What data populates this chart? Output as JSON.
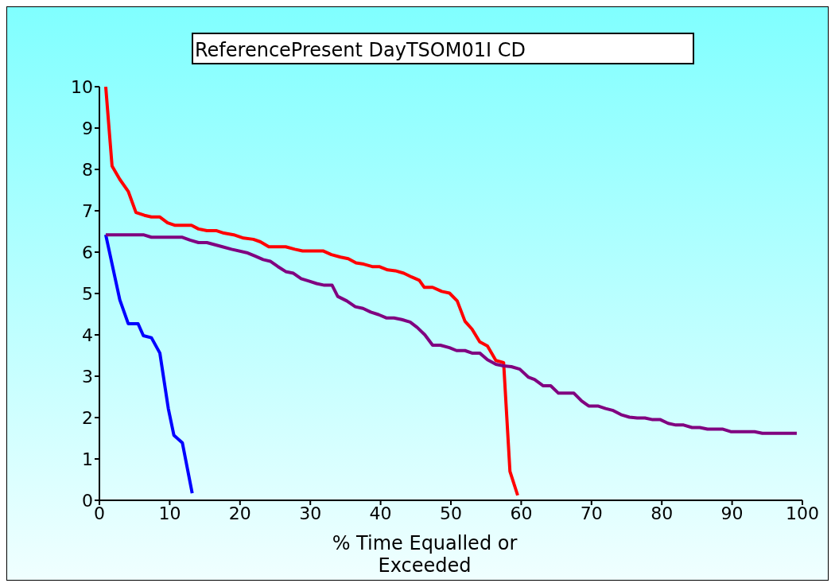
{
  "chart_data": {
    "type": "line",
    "title": "ReferencePresent DayTSOM01I CD",
    "xlabel": "% Time Equalled or Exceeded",
    "xlim": [
      0,
      100
    ],
    "xticks": [
      0,
      10,
      20,
      30,
      40,
      50,
      60,
      70,
      80,
      90,
      100
    ],
    "ylim": [
      0,
      10
    ],
    "yticks": [
      0,
      1,
      2,
      3,
      4,
      5,
      6,
      7,
      8,
      9,
      10
    ],
    "marker": "none",
    "line_style": "solid",
    "series": [
      {
        "color": "#0000ff",
        "x": [
          0.9,
          2.9,
          4.1,
          5.5,
          6.25,
          7.4,
          8.6,
          9.8,
          10.6,
          11.8,
          13.2
        ],
        "values": [
          6.42,
          4.85,
          4.27,
          4.27,
          3.98,
          3.93,
          3.56,
          2.22,
          1.57,
          1.39,
          0.17
        ]
      },
      {
        "color": "#ff0000",
        "x": [
          0.9,
          1.8,
          2.9,
          4.1,
          5.2,
          6.4,
          7.4,
          8.6,
          9.7,
          10.7,
          13.1,
          14.1,
          15.3,
          16.6,
          17.7,
          19.1,
          20.5,
          21.9,
          22.9,
          24.1,
          26.5,
          27.8,
          28.9,
          31.8,
          33.0,
          34.3,
          35.4,
          36.5,
          37.6,
          38.8,
          39.8,
          41.0,
          42.1,
          43.3,
          44.4,
          45.5,
          46.2,
          47.4,
          48.7,
          49.8,
          50.9,
          52.0,
          53.0,
          54.1,
          55.2,
          56.4,
          57.5,
          58.4,
          59.5
        ],
        "values": [
          10,
          8.08,
          7.76,
          7.47,
          6.96,
          6.89,
          6.85,
          6.85,
          6.71,
          6.65,
          6.65,
          6.56,
          6.52,
          6.52,
          6.46,
          6.42,
          6.34,
          6.31,
          6.25,
          6.13,
          6.13,
          6.07,
          6.03,
          6.03,
          5.94,
          5.88,
          5.84,
          5.74,
          5.71,
          5.65,
          5.65,
          5.57,
          5.55,
          5.49,
          5.4,
          5.32,
          5.15,
          5.15,
          5.05,
          5.01,
          4.82,
          4.33,
          4.14,
          3.83,
          3.73,
          3.38,
          3.33,
          0.7,
          0.12
        ]
      },
      {
        "color": "#800080",
        "x": [
          0.9,
          6.25,
          7.4,
          11.8,
          12.9,
          14.1,
          15.3,
          17.5,
          18.8,
          21.1,
          22.2,
          23.3,
          24.3,
          25.4,
          26.5,
          27.6,
          28.7,
          29.8,
          30.9,
          32.0,
          33.1,
          33.9,
          35.2,
          36.4,
          37.5,
          38.6,
          39.7,
          40.8,
          41.9,
          43.0,
          44.2,
          45.2,
          46.3,
          47.4,
          48.5,
          49.8,
          50.8,
          52.0,
          53.0,
          54.1,
          55.2,
          56.4,
          57.5,
          58.6,
          59.8,
          61.0,
          61.9,
          63.1,
          64.2,
          65.3,
          67.5,
          68.6,
          69.6,
          70.9,
          72.0,
          73.1,
          74.2,
          75.4,
          76.5,
          77.6,
          78.7,
          79.8,
          80.9,
          82.0,
          83.1,
          84.3,
          85.4,
          86.5,
          88.7,
          89.8,
          93.2,
          94.3,
          99.2
        ],
        "values": [
          6.42,
          6.42,
          6.36,
          6.36,
          6.29,
          6.23,
          6.23,
          6.13,
          6.07,
          5.98,
          5.9,
          5.82,
          5.78,
          5.65,
          5.53,
          5.49,
          5.36,
          5.3,
          5.24,
          5.2,
          5.2,
          4.93,
          4.82,
          4.68,
          4.64,
          4.55,
          4.49,
          4.41,
          4.41,
          4.37,
          4.31,
          4.18,
          4.0,
          3.75,
          3.75,
          3.69,
          3.62,
          3.62,
          3.56,
          3.56,
          3.4,
          3.29,
          3.25,
          3.23,
          3.17,
          2.98,
          2.92,
          2.77,
          2.77,
          2.59,
          2.59,
          2.4,
          2.28,
          2.28,
          2.22,
          2.17,
          2.07,
          2.01,
          1.99,
          1.99,
          1.95,
          1.95,
          1.86,
          1.82,
          1.82,
          1.76,
          1.76,
          1.72,
          1.72,
          1.66,
          1.66,
          1.62,
          1.62
        ]
      }
    ]
  }
}
